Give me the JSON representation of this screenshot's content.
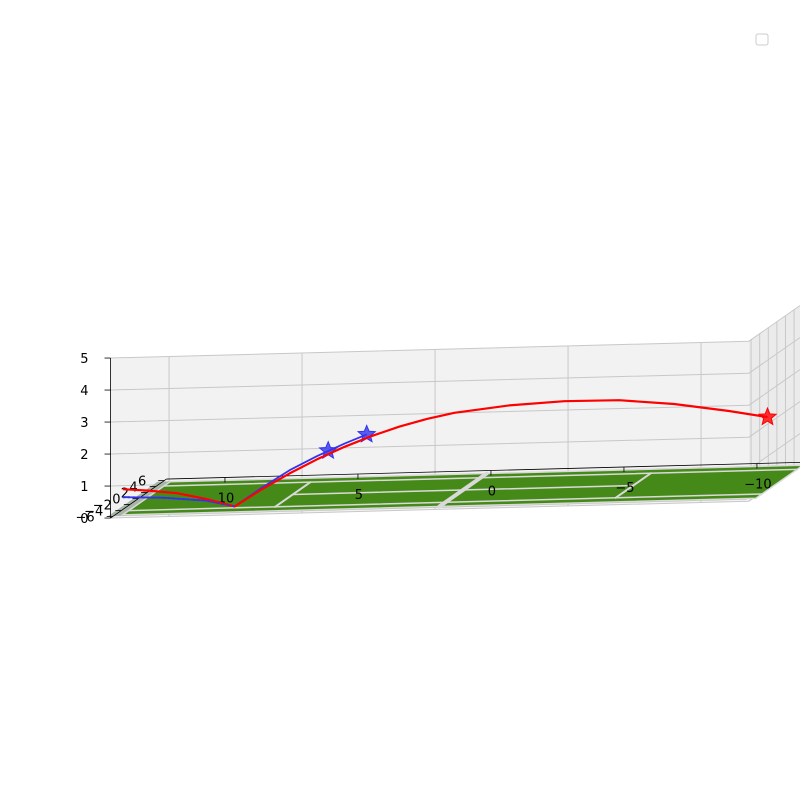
{
  "chart_data": {
    "type": "3d-line",
    "title": "",
    "xlabel": "",
    "ylabel": "",
    "zlabel": "",
    "x_ticks": [
      "10",
      "5",
      "0",
      "−5",
      "−10"
    ],
    "y_ticks": [
      "−6",
      "−4",
      "−2",
      "0",
      "2",
      "4",
      "6"
    ],
    "z_ticks": [
      "0",
      "1",
      "2",
      "3",
      "4",
      "5"
    ],
    "xlim": [
      12.2,
      -11.8
    ],
    "ylim": [
      -6.5,
      6.5
    ],
    "zlim": [
      0,
      5
    ],
    "grid": true,
    "legend": {
      "placement": "top-right",
      "entries": []
    },
    "court": {
      "surface_color": "#458a19",
      "line_color": "#d9d9d9",
      "border_color": "#a8b5a6"
    },
    "series": [
      {
        "color": "#ff0000",
        "style": "solid",
        "points": [
          {
            "x": 11.9,
            "y": -5.5,
            "z": 0.8
          },
          {
            "x": 11.0,
            "y": -5.1,
            "z": 0.7
          },
          {
            "x": 10.0,
            "y": -4.6,
            "z": 0.55
          },
          {
            "x": 9.0,
            "y": -4.1,
            "z": 0.3
          },
          {
            "x": 8.0,
            "y": -3.6,
            "z": 0.0
          },
          {
            "x": 7.0,
            "y": -3.4,
            "z": 0.5
          },
          {
            "x": 6.0,
            "y": -3.2,
            "z": 0.95
          },
          {
            "x": 5.0,
            "y": -3.0,
            "z": 1.35
          },
          {
            "x": 4.0,
            "y": -2.8,
            "z": 1.7
          },
          {
            "x": 3.0,
            "y": -2.6,
            "z": 2.0
          },
          {
            "x": 2.0,
            "y": -2.4,
            "z": 2.25
          },
          {
            "x": 1.0,
            "y": -2.2,
            "z": 2.45
          },
          {
            "x": 0.0,
            "y": -2.0,
            "z": 2.6
          },
          {
            "x": -2.0,
            "y": -1.6,
            "z": 2.75
          },
          {
            "x": -4.0,
            "y": -1.2,
            "z": 2.8
          },
          {
            "x": -6.0,
            "y": -0.8,
            "z": 2.75
          },
          {
            "x": -8.0,
            "y": -0.4,
            "z": 2.55
          },
          {
            "x": -10.0,
            "y": 0.0,
            "z": 2.25
          },
          {
            "x": -11.4,
            "y": 0.3,
            "z": 2.0
          }
        ],
        "markers": [
          {
            "x": -11.4,
            "y": 0.3,
            "z": 2.0,
            "symbol": "star"
          }
        ]
      },
      {
        "color": "#3333ee",
        "style": "solid",
        "points": [
          {
            "x": 11.9,
            "y": -5.5,
            "z": 0.55
          },
          {
            "x": 10.5,
            "y": -4.9,
            "z": 0.45
          },
          {
            "x": 9.0,
            "y": -4.1,
            "z": 0.25
          },
          {
            "x": 8.0,
            "y": -3.6,
            "z": 0.0
          },
          {
            "x": 7.0,
            "y": -3.4,
            "z": 0.55
          },
          {
            "x": 6.0,
            "y": -3.2,
            "z": 1.05
          },
          {
            "x": 5.0,
            "y": -3.0,
            "z": 1.45
          },
          {
            "x": 4.0,
            "y": -2.8,
            "z": 1.8
          },
          {
            "x": 3.2,
            "y": -2.6,
            "z": 2.05
          }
        ],
        "markers": [
          {
            "x": 4.6,
            "y": -2.9,
            "z": 1.6,
            "symbol": "star"
          },
          {
            "x": 3.2,
            "y": -2.6,
            "z": 2.05,
            "symbol": "star"
          }
        ]
      }
    ]
  }
}
